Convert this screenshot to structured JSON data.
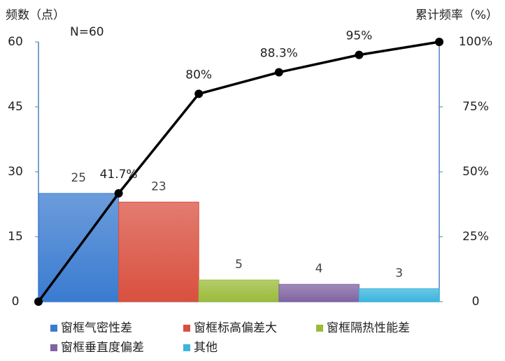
{
  "chart_data": {
    "type": "pareto",
    "ylabel": "频数（点）",
    "y2label": "累计频率（%）",
    "annotation": "N=60",
    "categories": [
      "窗框气密性差",
      "窗框标高偏差大",
      "窗框隔热性能差",
      "窗框垂直度偏差",
      "其他"
    ],
    "values": [
      25,
      23,
      5,
      4,
      3
    ],
    "colors": [
      "#3a7bd0",
      "#d9503f",
      "#9bbb3b",
      "#8064a2",
      "#3ab5dc"
    ],
    "cumulative": {
      "axis": "y2",
      "color": "#000000",
      "values": [
        0,
        41.7,
        80,
        88.3,
        95,
        100
      ],
      "value_labels": [
        null,
        "41.7%",
        "80%",
        "88.3%",
        "95%",
        null
      ]
    },
    "ylim": [
      0,
      60
    ],
    "yticks": [
      0,
      15,
      30,
      45,
      60
    ],
    "y2lim": [
      0,
      100
    ],
    "y2ticks": [
      0,
      {
        "value": 25,
        "label": "25%"
      },
      {
        "value": 50,
        "label": "50%"
      },
      {
        "value": 75,
        "label": "75%"
      },
      {
        "value": 100,
        "label": "100%"
      }
    ]
  }
}
